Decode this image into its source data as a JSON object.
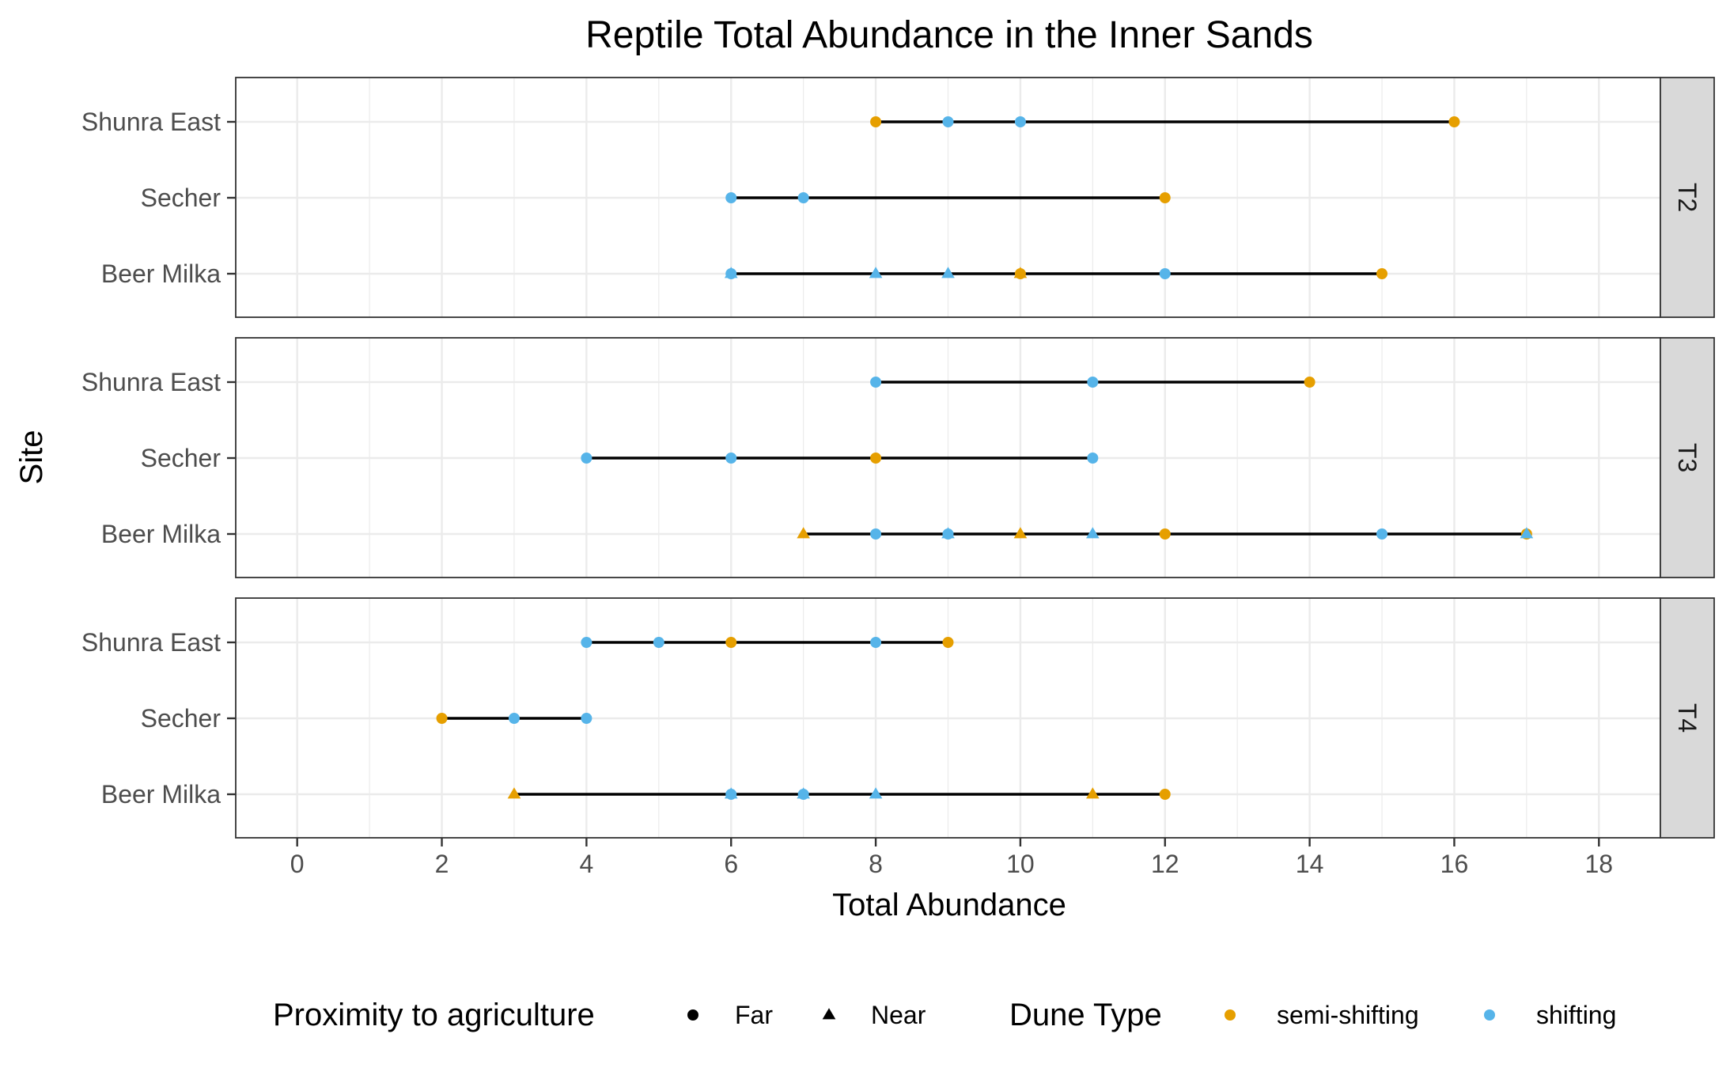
{
  "chart_data": {
    "type": "scatter",
    "title": "Reptile Total Abundance in the Inner Sands",
    "xlabel": "Total Abundance",
    "ylabel": "Site",
    "xlim": [
      -0.85,
      18.85
    ],
    "x_ticks": [
      0,
      2,
      4,
      6,
      8,
      10,
      12,
      14,
      16,
      18
    ],
    "sites": [
      "Shunra East",
      "Secher",
      "Beer Milka"
    ],
    "grid": true,
    "legend_position": "bottom",
    "colors": {
      "semi-shifting": "#E69F00",
      "shifting": "#56B4E9"
    },
    "legend": {
      "shape_title": "Proximity to agriculture",
      "shape_items": [
        {
          "label": "Far",
          "shape": "circle"
        },
        {
          "label": "Near",
          "shape": "triangle"
        }
      ],
      "color_title": "Dune Type",
      "color_items": [
        {
          "label": "semi-shifting",
          "dune": "semi-shifting"
        },
        {
          "label": "shifting",
          "dune": "shifting"
        }
      ]
    },
    "panels": [
      {
        "label": "T2",
        "points": [
          {
            "site": "Shunra East",
            "x": 8,
            "dune": "semi-shifting",
            "proximity": "Far"
          },
          {
            "site": "Shunra East",
            "x": 9,
            "dune": "shifting",
            "proximity": "Far"
          },
          {
            "site": "Shunra East",
            "x": 10,
            "dune": "shifting",
            "proximity": "Far"
          },
          {
            "site": "Shunra East",
            "x": 16,
            "dune": "semi-shifting",
            "proximity": "Far"
          },
          {
            "site": "Secher",
            "x": 6,
            "dune": "shifting",
            "proximity": "Far"
          },
          {
            "site": "Secher",
            "x": 7,
            "dune": "shifting",
            "proximity": "Far"
          },
          {
            "site": "Secher",
            "x": 12,
            "dune": "semi-shifting",
            "proximity": "Far"
          },
          {
            "site": "Beer Milka",
            "x": 6,
            "dune": "shifting",
            "proximity": "Far"
          },
          {
            "site": "Beer Milka",
            "x": 6,
            "dune": "shifting",
            "proximity": "Near"
          },
          {
            "site": "Beer Milka",
            "x": 8,
            "dune": "shifting",
            "proximity": "Near"
          },
          {
            "site": "Beer Milka",
            "x": 9,
            "dune": "shifting",
            "proximity": "Near"
          },
          {
            "site": "Beer Milka",
            "x": 10,
            "dune": "semi-shifting",
            "proximity": "Far"
          },
          {
            "site": "Beer Milka",
            "x": 10,
            "dune": "semi-shifting",
            "proximity": "Near"
          },
          {
            "site": "Beer Milka",
            "x": 12,
            "dune": "shifting",
            "proximity": "Far"
          },
          {
            "site": "Beer Milka",
            "x": 15,
            "dune": "semi-shifting",
            "proximity": "Far"
          }
        ]
      },
      {
        "label": "T3",
        "points": [
          {
            "site": "Shunra East",
            "x": 8,
            "dune": "shifting",
            "proximity": "Far"
          },
          {
            "site": "Shunra East",
            "x": 11,
            "dune": "shifting",
            "proximity": "Far"
          },
          {
            "site": "Shunra East",
            "x": 14,
            "dune": "semi-shifting",
            "proximity": "Far"
          },
          {
            "site": "Secher",
            "x": 4,
            "dune": "shifting",
            "proximity": "Far"
          },
          {
            "site": "Secher",
            "x": 6,
            "dune": "shifting",
            "proximity": "Far"
          },
          {
            "site": "Secher",
            "x": 8,
            "dune": "semi-shifting",
            "proximity": "Far"
          },
          {
            "site": "Secher",
            "x": 11,
            "dune": "shifting",
            "proximity": "Far"
          },
          {
            "site": "Beer Milka",
            "x": 7,
            "dune": "semi-shifting",
            "proximity": "Near"
          },
          {
            "site": "Beer Milka",
            "x": 8,
            "dune": "shifting",
            "proximity": "Far"
          },
          {
            "site": "Beer Milka",
            "x": 9,
            "dune": "shifting",
            "proximity": "Far"
          },
          {
            "site": "Beer Milka",
            "x": 9,
            "dune": "shifting",
            "proximity": "Near"
          },
          {
            "site": "Beer Milka",
            "x": 10,
            "dune": "semi-shifting",
            "proximity": "Near"
          },
          {
            "site": "Beer Milka",
            "x": 11,
            "dune": "shifting",
            "proximity": "Near"
          },
          {
            "site": "Beer Milka",
            "x": 12,
            "dune": "semi-shifting",
            "proximity": "Far"
          },
          {
            "site": "Beer Milka",
            "x": 15,
            "dune": "shifting",
            "proximity": "Far"
          },
          {
            "site": "Beer Milka",
            "x": 17,
            "dune": "semi-shifting",
            "proximity": "Far"
          },
          {
            "site": "Beer Milka",
            "x": 17,
            "dune": "shifting",
            "proximity": "Near"
          }
        ]
      },
      {
        "label": "T4",
        "points": [
          {
            "site": "Shunra East",
            "x": 4,
            "dune": "shifting",
            "proximity": "Far"
          },
          {
            "site": "Shunra East",
            "x": 5,
            "dune": "shifting",
            "proximity": "Far"
          },
          {
            "site": "Shunra East",
            "x": 6,
            "dune": "semi-shifting",
            "proximity": "Far"
          },
          {
            "site": "Shunra East",
            "x": 8,
            "dune": "shifting",
            "proximity": "Far"
          },
          {
            "site": "Shunra East",
            "x": 9,
            "dune": "semi-shifting",
            "proximity": "Far"
          },
          {
            "site": "Secher",
            "x": 2,
            "dune": "semi-shifting",
            "proximity": "Far"
          },
          {
            "site": "Secher",
            "x": 3,
            "dune": "shifting",
            "proximity": "Far"
          },
          {
            "site": "Secher",
            "x": 4,
            "dune": "shifting",
            "proximity": "Far"
          },
          {
            "site": "Beer Milka",
            "x": 3,
            "dune": "semi-shifting",
            "proximity": "Near"
          },
          {
            "site": "Beer Milka",
            "x": 6,
            "dune": "shifting",
            "proximity": "Far"
          },
          {
            "site": "Beer Milka",
            "x": 6,
            "dune": "shifting",
            "proximity": "Near"
          },
          {
            "site": "Beer Milka",
            "x": 7,
            "dune": "shifting",
            "proximity": "Far"
          },
          {
            "site": "Beer Milka",
            "x": 7,
            "dune": "shifting",
            "proximity": "Near"
          },
          {
            "site": "Beer Milka",
            "x": 8,
            "dune": "shifting",
            "proximity": "Near"
          },
          {
            "site": "Beer Milka",
            "x": 11,
            "dune": "semi-shifting",
            "proximity": "Near"
          },
          {
            "site": "Beer Milka",
            "x": 12,
            "dune": "semi-shifting",
            "proximity": "Far"
          }
        ]
      }
    ]
  }
}
